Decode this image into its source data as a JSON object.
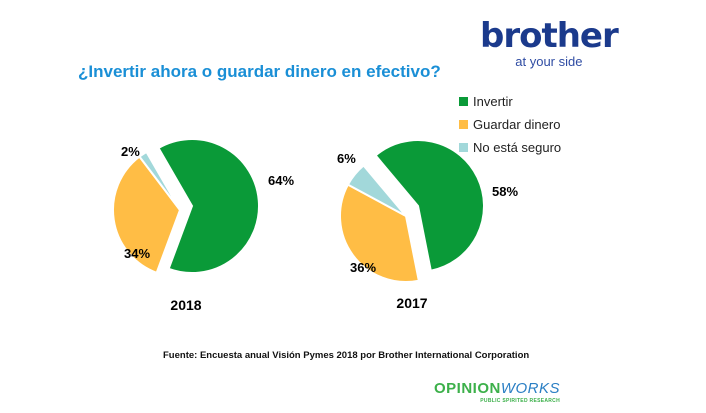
{
  "title": "¿Invertir ahora o guardar dinero en efectivo?",
  "logo": {
    "brand": "brother",
    "tagline": "at your side"
  },
  "source": "Fuente: Encuesta anual Visión Pymes 2018 por Brother International Corporation",
  "footer_logo": {
    "a": "OPINION",
    "b": "WORKS",
    "tagline": "PUBLIC SPIRITED RESEARCH"
  },
  "chart_data": [
    {
      "type": "pie",
      "title": "2018",
      "labels": [
        "Invertir",
        "Guardar dinero",
        "No está seguro"
      ],
      "values": [
        64,
        34,
        2
      ],
      "data_labels": [
        "64%",
        "34%",
        "2%"
      ],
      "colors": [
        "#0a9a38",
        "#ffbd45",
        "#a2d8da"
      ]
    },
    {
      "type": "pie",
      "title": "2017",
      "labels": [
        "Invertir",
        "Guardar dinero",
        "No está seguro"
      ],
      "values": [
        58,
        36,
        6
      ],
      "data_labels": [
        "58%",
        "36%",
        "6%"
      ],
      "colors": [
        "#0a9a38",
        "#ffbd45",
        "#a2d8da"
      ]
    }
  ],
  "legend": [
    {
      "label": "Invertir",
      "color": "#0a9a38"
    },
    {
      "label": "Guardar dinero",
      "color": "#ffbd45"
    },
    {
      "label": "No está seguro",
      "color": "#a2d8da"
    }
  ]
}
